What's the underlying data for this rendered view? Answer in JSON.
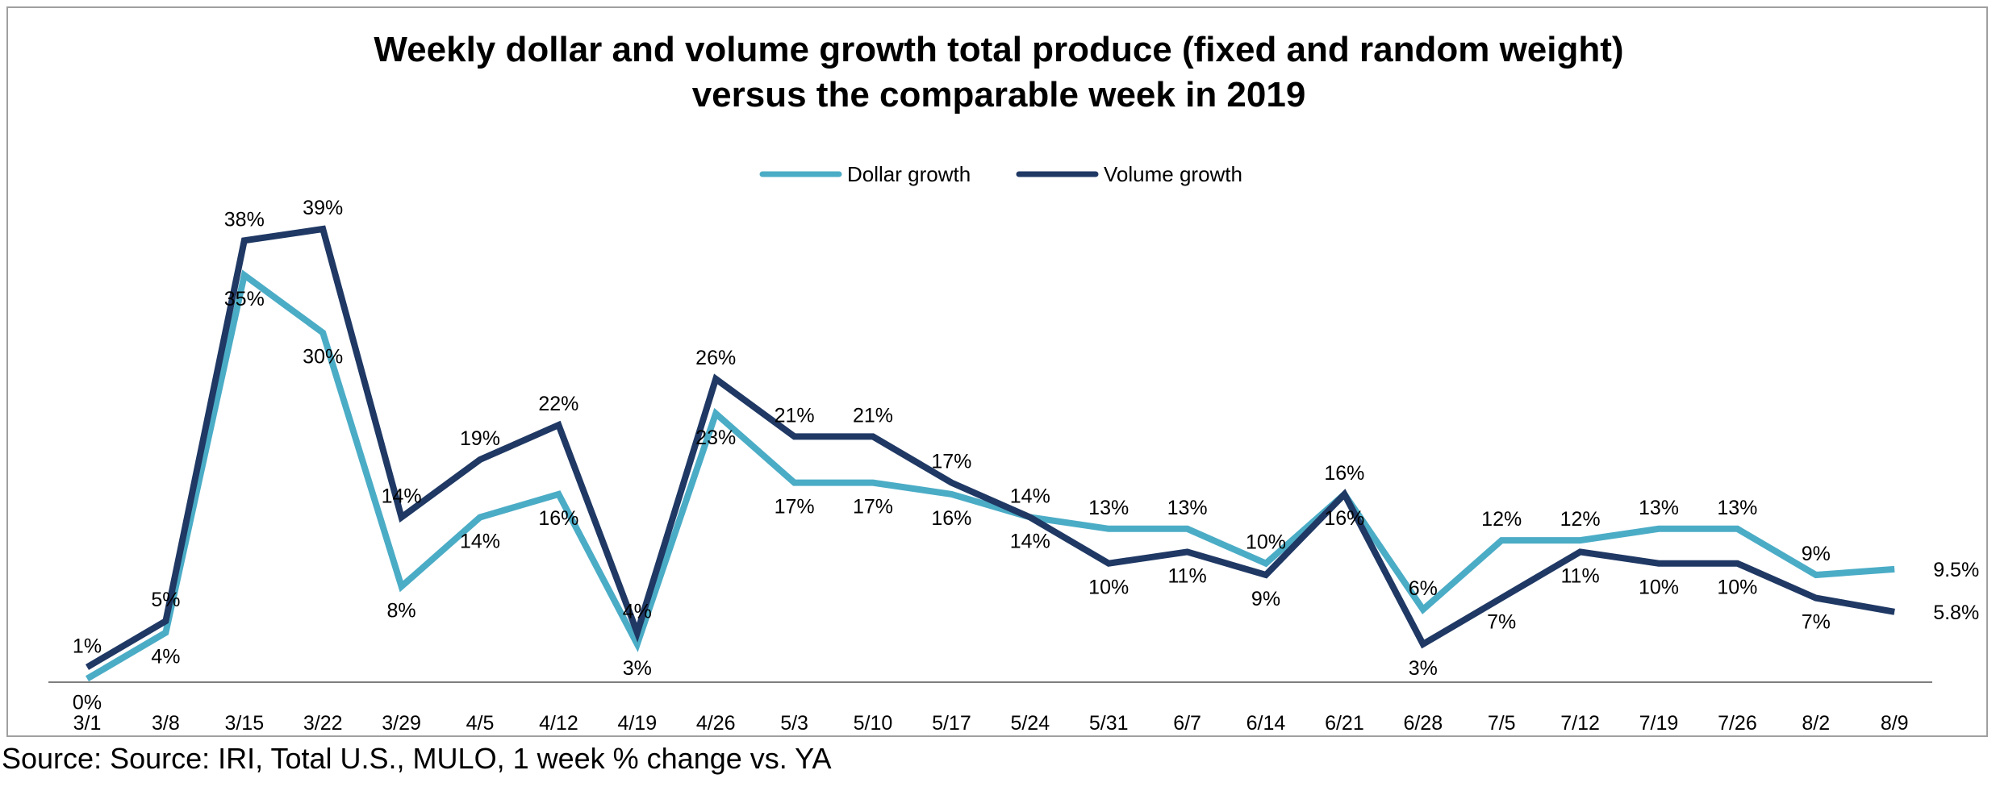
{
  "chart_data": {
    "type": "line",
    "title_lines": [
      "Weekly dollar and volume growth  total produce (fixed and random weight)",
      "versus the comparable week in 2019"
    ],
    "categories": [
      "3/1",
      "3/8",
      "3/15",
      "3/22",
      "3/29",
      "4/5",
      "4/12",
      "4/19",
      "4/26",
      "5/3",
      "5/10",
      "5/17",
      "5/24",
      "5/31",
      "6/7",
      "6/14",
      "6/21",
      "6/28",
      "7/5",
      "7/12",
      "7/19",
      "7/26",
      "8/2",
      "8/9"
    ],
    "series": [
      {
        "name": "Dollar growth",
        "color": "#4bacc6",
        "values": [
          0,
          4,
          35,
          30,
          8,
          14,
          16,
          3,
          23,
          17,
          17,
          16,
          14,
          13,
          13,
          10,
          16,
          6,
          12,
          12,
          13,
          13,
          9,
          9.5
        ],
        "labels": [
          "0%",
          "4%",
          "35%",
          "30%",
          "8%",
          "14%",
          "16%",
          "3%",
          "23%",
          "17%",
          "17%",
          "16%",
          "14%",
          "13%",
          "13%",
          "10%",
          "16%",
          "6%",
          "12%",
          "12%",
          "13%",
          "13%",
          "9%",
          "9.5%"
        ]
      },
      {
        "name": "Volume growth",
        "color": "#1f3864",
        "values": [
          1,
          5,
          38,
          39,
          14,
          19,
          22,
          4,
          26,
          21,
          21,
          17,
          14,
          10,
          11,
          9,
          16,
          3,
          7,
          11,
          10,
          10,
          7,
          5.8
        ],
        "labels": [
          "1%",
          "5%",
          "38%",
          "39%",
          "14%",
          "19%",
          "22%",
          "4%",
          "26%",
          "21%",
          "21%",
          "17%",
          "14%",
          "10%",
          "11%",
          "9%",
          "16%",
          "3%",
          "7%",
          "11%",
          "10%",
          "10%",
          "7%",
          "5.8%"
        ]
      }
    ],
    "ylim": [
      0,
      42
    ],
    "grid": false,
    "legend_position": "top-center"
  },
  "source_text": "Source: Source: IRI, Total U.S., MULO, 1 week % change vs. YA"
}
